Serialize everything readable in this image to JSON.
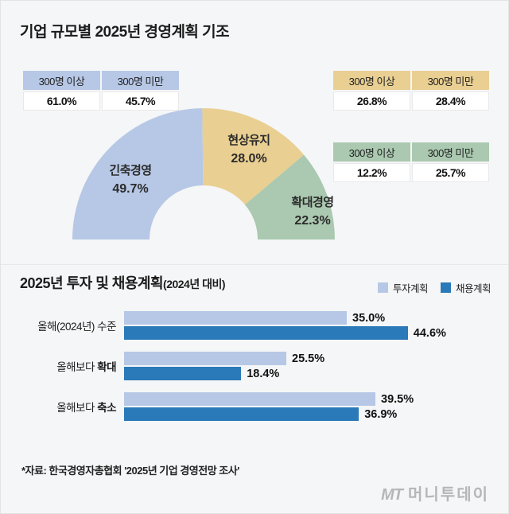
{
  "title": "기업 규모별 2025년 경영계획 기조",
  "donut": {
    "segments": [
      {
        "name": "긴축경영",
        "value": 49.7,
        "display": "49.7%",
        "color": "#b7c8e6"
      },
      {
        "name": "현상유지",
        "value": 28.0,
        "display": "28.0%",
        "color": "#e9cf92"
      },
      {
        "name": "확대경영",
        "value": 22.3,
        "display": "22.3%",
        "color": "#aac9b0"
      }
    ]
  },
  "tables": [
    {
      "color": "#b7c8e6",
      "col1": "300명 이상",
      "col2": "300명 미만",
      "val1": "61.0%",
      "val2": "45.7%"
    },
    {
      "color": "#e9cf92",
      "col1": "300명 이상",
      "col2": "300명 미만",
      "val1": "26.8%",
      "val2": "28.4%"
    },
    {
      "color": "#aac9b0",
      "col1": "300명 이상",
      "col2": "300명 미만",
      "val1": "12.2%",
      "val2": "25.7%"
    }
  ],
  "bars": {
    "title": "2025년 투자 및 채용계획",
    "title_suffix": "(2024년 대비)",
    "scale_max": 50,
    "legend": [
      {
        "label": "투자계획",
        "color": "#b7c8e6"
      },
      {
        "label": "채용계획",
        "color": "#2a79b8"
      }
    ],
    "rows": [
      {
        "label": "올해(2024년) 수준",
        "label_bold": "",
        "invest": 35.0,
        "invest_display": "35.0%",
        "hire": 44.6,
        "hire_display": "44.6%"
      },
      {
        "label": "올해보다 ",
        "label_bold": "확대",
        "invest": 25.5,
        "invest_display": "25.5%",
        "hire": 18.4,
        "hire_display": "18.4%"
      },
      {
        "label": "올해보다 ",
        "label_bold": "축소",
        "invest": 39.5,
        "invest_display": "39.5%",
        "hire": 36.9,
        "hire_display": "36.9%"
      }
    ]
  },
  "footer": "*자료: 한국경영자총협회 '2025년 기업 경영전망 조사'",
  "logo": {
    "mt": "MT",
    "name": "머니투데이"
  },
  "chart_data": [
    {
      "type": "pie",
      "shape": "half-donut",
      "title": "기업 규모별 2025년 경영계획 기조",
      "labels": [
        "긴축경영",
        "현상유지",
        "확대경영"
      ],
      "values": [
        49.7,
        28.0,
        22.3
      ],
      "colors": [
        "#b7c8e6",
        "#e9cf92",
        "#aac9b0"
      ],
      "by_company_size": [
        {
          "segment": "긴축경영",
          "300명 이상": 61.0,
          "300명 미만": 45.7
        },
        {
          "segment": "현상유지",
          "300명 이상": 26.8,
          "300명 미만": 28.4
        },
        {
          "segment": "확대경영",
          "300명 이상": 12.2,
          "300명 미만": 25.7
        }
      ]
    },
    {
      "type": "bar",
      "orientation": "horizontal",
      "title": "2025년 투자 및 채용계획(2024년 대비)",
      "categories": [
        "올해(2024년) 수준",
        "올해보다 확대",
        "올해보다 축소"
      ],
      "series": [
        {
          "name": "투자계획",
          "values": [
            35.0,
            25.5,
            39.5
          ],
          "color": "#b7c8e6"
        },
        {
          "name": "채용계획",
          "values": [
            44.6,
            18.4,
            36.9
          ],
          "color": "#2a79b8"
        }
      ],
      "xlim": [
        0,
        50
      ],
      "grid": false,
      "legend_position": "top-right",
      "source": "*자료: 한국경영자총협회 '2025년 기업 경영전망 조사'"
    }
  ]
}
